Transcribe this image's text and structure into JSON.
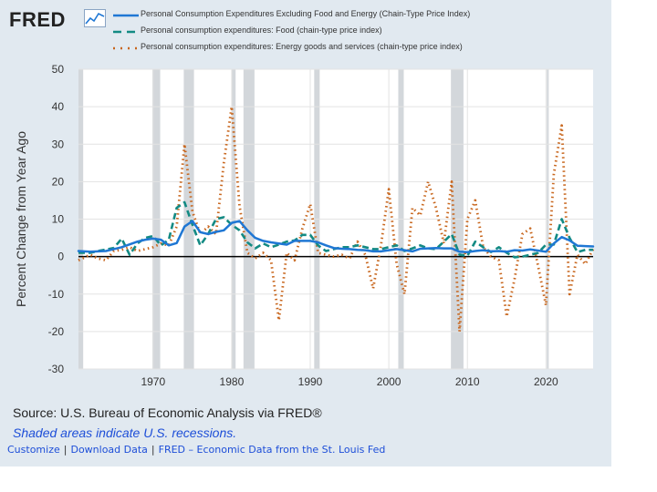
{
  "header": {
    "logo_text": "FRED"
  },
  "chart_data": {
    "type": "line",
    "ylabel": "Percent Change from Year Ago",
    "xlabel": "",
    "ylim": [
      -30,
      50
    ],
    "xlim": [
      1960.5,
      2026.0
    ],
    "y_ticks": [
      "50",
      "40",
      "30",
      "20",
      "10",
      "0",
      "-10",
      "-20",
      "-30"
    ],
    "y_tick_values": [
      50,
      40,
      30,
      20,
      10,
      0,
      -10,
      -20,
      -30
    ],
    "x_ticks": [
      "1970",
      "1980",
      "1990",
      "2000",
      "2010",
      "2020"
    ],
    "x_tick_values": [
      1970,
      1980,
      1990,
      2000,
      2010,
      2020
    ],
    "grid": true,
    "legend_position": "top",
    "recessions": [
      [
        1960.3,
        1961.1
      ],
      [
        1969.9,
        1970.9
      ],
      [
        1973.9,
        1975.2
      ],
      [
        1980.0,
        1980.5
      ],
      [
        1981.5,
        1982.9
      ],
      [
        1990.5,
        1991.2
      ],
      [
        2001.2,
        2001.9
      ],
      [
        2007.9,
        2009.5
      ],
      [
        2020.1,
        2020.35
      ]
    ],
    "series": [
      {
        "name": "Personal Consumption Expenditures Excluding Food and Energy (Chain-Type Price Index)",
        "color": "#1f77d4",
        "style": "solid",
        "points": [
          [
            1960.5,
            1.5
          ],
          [
            1962,
            1.3
          ],
          [
            1964,
            1.5
          ],
          [
            1966,
            2.5
          ],
          [
            1968,
            4.0
          ],
          [
            1969,
            4.5
          ],
          [
            1970,
            4.8
          ],
          [
            1971,
            4.5
          ],
          [
            1972,
            3.0
          ],
          [
            1973,
            3.6
          ],
          [
            1974,
            8.0
          ],
          [
            1975,
            9.5
          ],
          [
            1976,
            6.5
          ],
          [
            1977,
            6.0
          ],
          [
            1978,
            6.6
          ],
          [
            1979,
            7.0
          ],
          [
            1980,
            9.0
          ],
          [
            1981,
            9.5
          ],
          [
            1982,
            7.0
          ],
          [
            1983,
            5.0
          ],
          [
            1984,
            4.2
          ],
          [
            1985,
            3.8
          ],
          [
            1986,
            3.5
          ],
          [
            1987,
            3.2
          ],
          [
            1988,
            4.2
          ],
          [
            1989,
            4.2
          ],
          [
            1990,
            4.2
          ],
          [
            1991,
            3.8
          ],
          [
            1992,
            3.0
          ],
          [
            1993,
            2.3
          ],
          [
            1994,
            2.1
          ],
          [
            1995,
            2.0
          ],
          [
            1996,
            1.8
          ],
          [
            1997,
            1.7
          ],
          [
            1998,
            1.4
          ],
          [
            1999,
            1.4
          ],
          [
            2000,
            1.7
          ],
          [
            2001,
            2.0
          ],
          [
            2002,
            1.7
          ],
          [
            2003,
            1.4
          ],
          [
            2004,
            2.1
          ],
          [
            2005,
            2.2
          ],
          [
            2006,
            2.3
          ],
          [
            2007,
            2.2
          ],
          [
            2008,
            2.2
          ],
          [
            2009,
            1.3
          ],
          [
            2010,
            1.2
          ],
          [
            2011,
            1.5
          ],
          [
            2012,
            1.7
          ],
          [
            2013,
            1.4
          ],
          [
            2014,
            1.5
          ],
          [
            2015,
            1.3
          ],
          [
            2016,
            1.7
          ],
          [
            2017,
            1.6
          ],
          [
            2018,
            1.9
          ],
          [
            2019,
            1.6
          ],
          [
            2020,
            1.3
          ],
          [
            2021,
            3.5
          ],
          [
            2022,
            5.2
          ],
          [
            2023,
            4.3
          ],
          [
            2024,
            2.9
          ],
          [
            2025,
            2.8
          ],
          [
            2026.0,
            2.7
          ]
        ]
      },
      {
        "name": "Personal consumption expenditures: Food (chain-type price index)",
        "color": "#138a83",
        "style": "dashed",
        "points": [
          [
            1960.5,
            1.0
          ],
          [
            1962,
            1.0
          ],
          [
            1963,
            1.5
          ],
          [
            1965,
            2.3
          ],
          [
            1966,
            4.8
          ],
          [
            1967,
            0.5
          ],
          [
            1968,
            3.5
          ],
          [
            1969,
            5.0
          ],
          [
            1970,
            5.5
          ],
          [
            1971,
            3.0
          ],
          [
            1972,
            4.5
          ],
          [
            1973,
            13.0
          ],
          [
            1974,
            14.5
          ],
          [
            1975,
            8.5
          ],
          [
            1976,
            3.0
          ],
          [
            1977,
            6.0
          ],
          [
            1978,
            10.0
          ],
          [
            1979,
            10.5
          ],
          [
            1980,
            8.5
          ],
          [
            1981,
            7.0
          ],
          [
            1982,
            3.8
          ],
          [
            1983,
            2.2
          ],
          [
            1984,
            3.5
          ],
          [
            1985,
            2.5
          ],
          [
            1986,
            3.2
          ],
          [
            1987,
            4.0
          ],
          [
            1988,
            4.3
          ],
          [
            1989,
            5.8
          ],
          [
            1990,
            5.8
          ],
          [
            1991,
            3.0
          ],
          [
            1992,
            1.5
          ],
          [
            1993,
            2.0
          ],
          [
            1994,
            2.5
          ],
          [
            1995,
            2.5
          ],
          [
            1996,
            3.0
          ],
          [
            1997,
            2.5
          ],
          [
            1998,
            2.0
          ],
          [
            1999,
            2.0
          ],
          [
            2000,
            2.5
          ],
          [
            2001,
            3.0
          ],
          [
            2002,
            1.5
          ],
          [
            2003,
            2.2
          ],
          [
            2004,
            3.0
          ],
          [
            2005,
            2.2
          ],
          [
            2006,
            2.0
          ],
          [
            2007,
            4.0
          ],
          [
            2008,
            6.0
          ],
          [
            2009,
            0.5
          ],
          [
            2010,
            0.2
          ],
          [
            2011,
            4.0
          ],
          [
            2012,
            2.5
          ],
          [
            2013,
            1.2
          ],
          [
            2014,
            2.5
          ],
          [
            2015,
            1.0
          ],
          [
            2016,
            -0.2
          ],
          [
            2017,
            0.0
          ],
          [
            2018,
            0.5
          ],
          [
            2019,
            1.0
          ],
          [
            2020,
            3.2
          ],
          [
            2021,
            3.2
          ],
          [
            2022,
            10.0
          ],
          [
            2023,
            5.0
          ],
          [
            2024,
            1.2
          ],
          [
            2025,
            1.8
          ],
          [
            2026.0,
            1.8
          ]
        ]
      },
      {
        "name": "Personal consumption expenditures: Energy goods and services (chain-type price index)",
        "color": "#c8661d",
        "style": "dotted",
        "points": [
          [
            1960.5,
            -1.0
          ],
          [
            1962,
            0.5
          ],
          [
            1963,
            -0.5
          ],
          [
            1964,
            -1.0
          ],
          [
            1965,
            1.5
          ],
          [
            1966,
            1.8
          ],
          [
            1967,
            2.5
          ],
          [
            1968,
            1.5
          ],
          [
            1969,
            2.0
          ],
          [
            1970,
            2.5
          ],
          [
            1971,
            3.5
          ],
          [
            1972,
            3.0
          ],
          [
            1973,
            8.0
          ],
          [
            1974,
            30.0
          ],
          [
            1975,
            12.0
          ],
          [
            1976,
            6.0
          ],
          [
            1977,
            8.0
          ],
          [
            1978,
            6.0
          ],
          [
            1979,
            25.0
          ],
          [
            1980,
            40.0
          ],
          [
            1981,
            13.5
          ],
          [
            1982,
            1.0
          ],
          [
            1983,
            -0.5
          ],
          [
            1984,
            1.0
          ],
          [
            1985,
            -1.0
          ],
          [
            1986,
            -17.0
          ],
          [
            1987,
            1.0
          ],
          [
            1988,
            -1.0
          ],
          [
            1989,
            7.5
          ],
          [
            1990,
            14.0
          ],
          [
            1991,
            1.0
          ],
          [
            1992,
            0.5
          ],
          [
            1993,
            0.0
          ],
          [
            1994,
            0.5
          ],
          [
            1995,
            -0.5
          ],
          [
            1996,
            4.0
          ],
          [
            1997,
            0.5
          ],
          [
            1998,
            -8.5
          ],
          [
            1999,
            3.0
          ],
          [
            2000,
            18.0
          ],
          [
            2001,
            -2.0
          ],
          [
            2002,
            -10.0
          ],
          [
            2003,
            13.0
          ],
          [
            2004,
            11.0
          ],
          [
            2005,
            20.0
          ],
          [
            2006,
            13.0
          ],
          [
            2007,
            3.5
          ],
          [
            2008,
            20.0
          ],
          [
            2009,
            -20.0
          ],
          [
            2010,
            10.0
          ],
          [
            2011,
            15.0
          ],
          [
            2012,
            2.5
          ],
          [
            2013,
            0.0
          ],
          [
            2014,
            -1.0
          ],
          [
            2015,
            -16.0
          ],
          [
            2016,
            -6.0
          ],
          [
            2017,
            6.0
          ],
          [
            2018,
            7.5
          ],
          [
            2019,
            -2.5
          ],
          [
            2020,
            -13.0
          ],
          [
            2021,
            22.0
          ],
          [
            2022,
            35.0
          ],
          [
            2023,
            -10.0
          ],
          [
            2024,
            0.5
          ],
          [
            2025,
            -2.0
          ],
          [
            2026.0,
            2.0
          ]
        ]
      }
    ]
  },
  "footer": {
    "source": "Source: U.S. Bureau of Economic Analysis via FRED®",
    "recession_note": "Shaded areas indicate U.S. recessions.",
    "link_customize": "Customize",
    "link_download": "Download Data",
    "link_fred": "FRED – Economic Data from the St. Louis Fed",
    "separator": "|"
  }
}
